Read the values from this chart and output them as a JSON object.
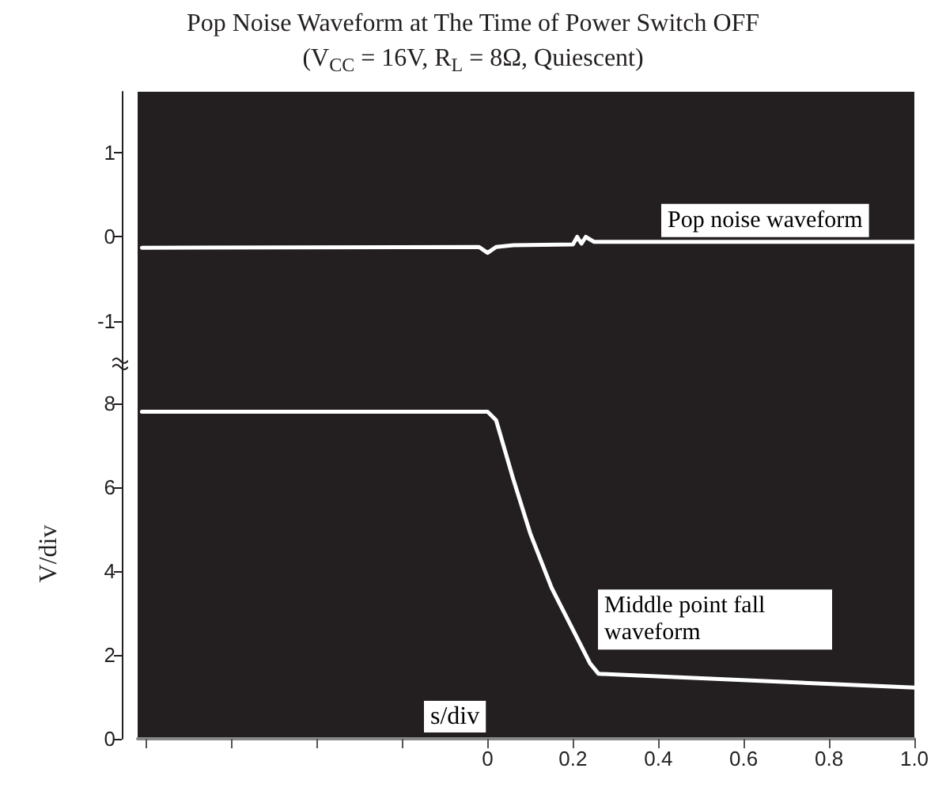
{
  "chart_data": [
    {
      "type": "line",
      "title": "Pop Noise Waveform at The Time of Power Switch OFF",
      "subtitle": "(V$_{CC}$ = 16V, R$_{L}$ = 8Ω, Quiescent)",
      "xlim": [
        -0.82,
        1
      ],
      "ylim": [
        -1.57,
        1.73
      ],
      "yticks": [
        -1,
        0,
        1
      ],
      "grid": false,
      "legend": false,
      "tick_labels": "y",
      "marker": "none",
      "line_style": "solid",
      "series": [
        {
          "name": "Pop noise waveform",
          "color": "#ffffff",
          "x": [
            -0.81,
            -0.02,
            0.0,
            0.02,
            0.06,
            0.2,
            0.21,
            0.22,
            0.23,
            0.25,
            1.0
          ],
          "values": [
            -0.13,
            -0.12,
            -0.19,
            -0.12,
            -0.1,
            -0.09,
            0.0,
            -0.08,
            0.0,
            -0.06,
            -0.06
          ]
        }
      ]
    },
    {
      "type": "line",
      "xlabel": "s/div",
      "ylabel": "V/div",
      "xlim": [
        -0.82,
        1
      ],
      "ylim": [
        0,
        8.83
      ],
      "xticks": [
        {
          "value": -0.8,
          "label": null
        },
        {
          "value": -0.6,
          "label": null
        },
        {
          "value": -0.4,
          "label": null
        },
        {
          "value": -0.2,
          "label": null
        },
        0,
        0.2,
        0.4,
        0.6,
        0.8,
        {
          "value": 1,
          "label": "1.0"
        }
      ],
      "yticks": [
        0,
        2,
        4,
        6,
        8
      ],
      "grid": false,
      "legend": false,
      "marker": "none",
      "line_style": "solid",
      "series": [
        {
          "name": "Middle point fall waveform",
          "color": "#ffffff",
          "x": [
            -0.81,
            0.0,
            0.02,
            0.06,
            0.1,
            0.15,
            0.2,
            0.24,
            0.26,
            1.0
          ],
          "values": [
            7.8,
            7.8,
            7.6,
            6.2,
            4.9,
            3.6,
            2.6,
            1.8,
            1.55,
            1.22
          ]
        }
      ]
    }
  ]
}
